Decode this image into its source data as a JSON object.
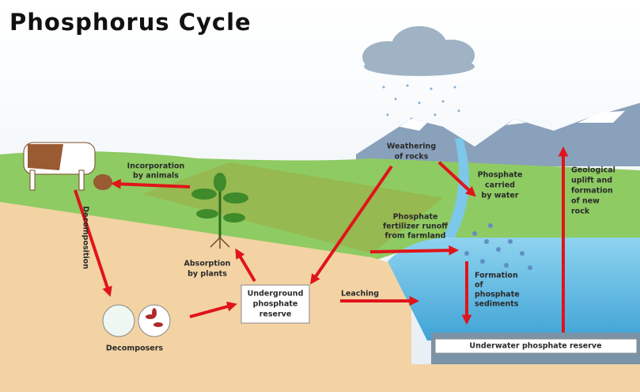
{
  "title": "Phosphorus Cycle",
  "labels": {
    "incorporation": [
      "Incorporation",
      "by animals"
    ],
    "weathering": [
      "Weathering",
      "of rocks"
    ],
    "carried": [
      "Phosphate",
      "carried",
      "by water"
    ],
    "uplift": [
      "Geological",
      "uplift and",
      "formation",
      "of new",
      "rock"
    ],
    "runoff": [
      "Phosphate",
      "fertilizer runoff",
      "from farmland"
    ],
    "absorption": [
      "Absorption",
      "by plants"
    ],
    "underground": [
      "Underground",
      "phosphate",
      "reserve"
    ],
    "leaching": [
      "Leaching"
    ],
    "sediments": [
      "Formation",
      "of",
      "phosphate",
      "sediments"
    ],
    "decomposition": [
      "Decomposition"
    ],
    "decomposers": [
      "Decomposers"
    ],
    "underwater": [
      "Underwater phosphate reserve"
    ]
  }
}
